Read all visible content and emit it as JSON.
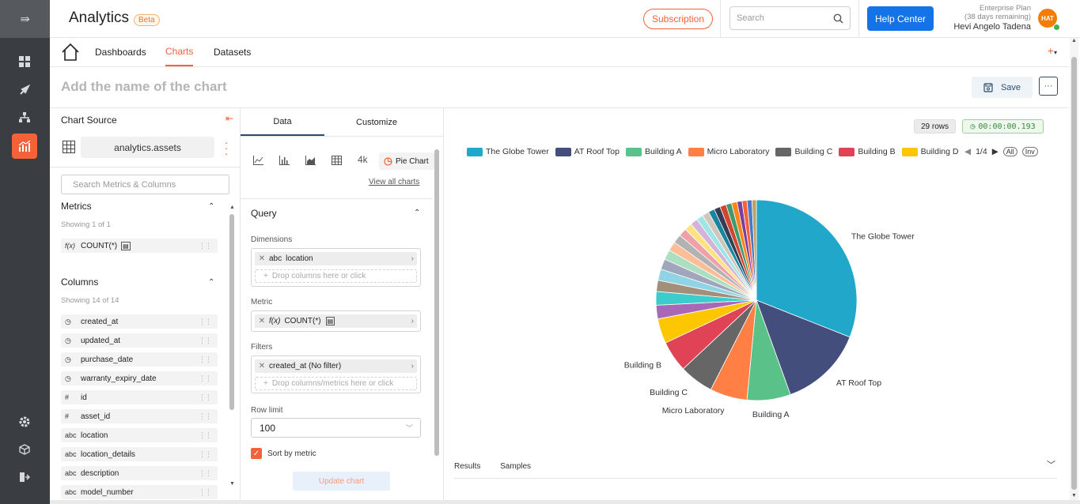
{
  "header": {
    "app_title": "Analytics",
    "beta_badge": "Beta",
    "subscription_label": "Subscription",
    "search_placeholder": "Search",
    "help_label": "Help Center",
    "plan_name": "Enterprise Plan",
    "plan_remaining": "(38 days remaining)",
    "user_name": "Hevi Angelo Tadena",
    "avatar_initials": "HAT"
  },
  "rail": {
    "icons": [
      "collapse-arrow-icon",
      "dashboard-icon",
      "rocket-icon",
      "hierarchy-icon",
      "chart-icon",
      "gear-icon",
      "cube-icon",
      "logout-icon"
    ]
  },
  "nav": {
    "tabs": [
      {
        "label": "Dashboards"
      },
      {
        "label": "Charts"
      },
      {
        "label": "Datasets"
      }
    ],
    "add_label": "+"
  },
  "chart_header": {
    "name_placeholder": "Add the name of the chart",
    "save_label": "Save",
    "more_label": "···"
  },
  "source": {
    "title": "Chart Source",
    "dataset": "analytics.assets",
    "search_placeholder": "Search Metrics & Columns",
    "metrics_title": "Metrics",
    "metrics_showing": "Showing 1 of 1",
    "metrics": [
      {
        "type": "f(x)",
        "name": "COUNT(*)"
      }
    ],
    "columns_title": "Columns",
    "columns_showing": "Showing 14 of 14",
    "columns": [
      {
        "type": "clock",
        "name": "created_at"
      },
      {
        "type": "clock",
        "name": "updated_at"
      },
      {
        "type": "clock",
        "name": "purchase_date"
      },
      {
        "type": "clock",
        "name": "warranty_expiry_date"
      },
      {
        "type": "#",
        "name": "id"
      },
      {
        "type": "#",
        "name": "asset_id"
      },
      {
        "type": "abc",
        "name": "location"
      },
      {
        "type": "abc",
        "name": "location_details"
      },
      {
        "type": "abc",
        "name": "description"
      },
      {
        "type": "abc",
        "name": "model_number"
      }
    ]
  },
  "config": {
    "tabs": [
      {
        "label": "Data"
      },
      {
        "label": "Customize"
      }
    ],
    "chart_types": [
      "line-chart-icon",
      "bar-chart-icon",
      "area-chart-icon",
      "table-icon"
    ],
    "big_number_label": "4k",
    "pie_label": "Pie Chart",
    "view_all": "View all charts",
    "query_title": "Query",
    "dimensions_label": "Dimensions",
    "dimension_type": "abc",
    "dimension_value": "location",
    "drop_columns": "Drop columns here or click",
    "metric_label": "Metric",
    "metric_type": "f(x)",
    "metric_value": "COUNT(*)",
    "filters_label": "Filters",
    "filter_value": "created_at (No filter)",
    "drop_filters": "Drop columns/metrics here or click",
    "row_limit_label": "Row limit",
    "row_limit_value": "100",
    "sort_label": "Sort by metric",
    "update_label": "Update chart"
  },
  "viz": {
    "rows": "29 rows",
    "time": "00:00:00.193",
    "page": "1/4",
    "all_label": "All",
    "inv_label": "Inv",
    "results_label": "Results",
    "samples_label": "Samples"
  },
  "chart_data": {
    "type": "pie",
    "title": "",
    "legend_position": "top",
    "series_label": "COUNT(*)",
    "slices": [
      {
        "name": "The Globe Tower",
        "value": 31.0,
        "color": "#20a7c9",
        "labeled": true
      },
      {
        "name": "AT Roof Top",
        "value": 13.5,
        "color": "#444e7c",
        "labeled": true
      },
      {
        "name": "Building A",
        "value": 7.0,
        "color": "#5ac189",
        "labeled": true
      },
      {
        "name": "Micro Laboratory",
        "value": 6.0,
        "color": "#ff7f44",
        "labeled": true
      },
      {
        "name": "Building C",
        "value": 5.5,
        "color": "#666666",
        "labeled": true
      },
      {
        "name": "Building B",
        "value": 5.0,
        "color": "#e04355",
        "labeled": true
      },
      {
        "name": "Building D",
        "value": 4.0,
        "color": "#fcc700",
        "labeled": false
      },
      {
        "name": "",
        "value": 2.2,
        "color": "#a868b7",
        "labeled": false
      },
      {
        "name": "",
        "value": 2.2,
        "color": "#3ccccb",
        "labeled": false
      },
      {
        "name": "",
        "value": 1.8,
        "color": "#a38f79",
        "labeled": false
      },
      {
        "name": "",
        "value": 1.8,
        "color": "#8fd3e4",
        "labeled": false
      },
      {
        "name": "",
        "value": 1.7,
        "color": "#a1a6bd",
        "labeled": false
      },
      {
        "name": "",
        "value": 1.6,
        "color": "#acdec0",
        "labeled": false
      },
      {
        "name": "",
        "value": 1.5,
        "color": "#fdbd97",
        "labeled": false
      },
      {
        "name": "",
        "value": 1.4,
        "color": "#b2b2b2",
        "labeled": false
      },
      {
        "name": "",
        "value": 1.3,
        "color": "#efa1aa",
        "labeled": false
      },
      {
        "name": "",
        "value": 1.2,
        "color": "#fde380",
        "labeled": false
      },
      {
        "name": "",
        "value": 1.2,
        "color": "#d3b3da",
        "labeled": false
      },
      {
        "name": "",
        "value": 1.1,
        "color": "#9ee5e5",
        "labeled": false
      },
      {
        "name": "",
        "value": 1.1,
        "color": "#d1c6bc",
        "labeled": false
      },
      {
        "name": "",
        "value": 1.0,
        "color": "#1a85a0",
        "labeled": false
      },
      {
        "name": "",
        "value": 1.0,
        "color": "#333d54",
        "labeled": false
      },
      {
        "name": "",
        "value": 1.0,
        "color": "#d0462e",
        "labeled": false
      },
      {
        "name": "",
        "value": 0.9,
        "color": "#3d9970",
        "labeled": false
      },
      {
        "name": "",
        "value": 0.9,
        "color": "#ff851b",
        "labeled": false
      },
      {
        "name": "",
        "value": 0.8,
        "color": "#7c3f9b",
        "labeled": false
      },
      {
        "name": "",
        "value": 0.8,
        "color": "#f4623a",
        "labeled": false
      },
      {
        "name": "",
        "value": 0.8,
        "color": "#4c78c8",
        "labeled": false
      },
      {
        "name": "",
        "value": 0.7,
        "color": "#c0a060",
        "labeled": false
      }
    ]
  }
}
